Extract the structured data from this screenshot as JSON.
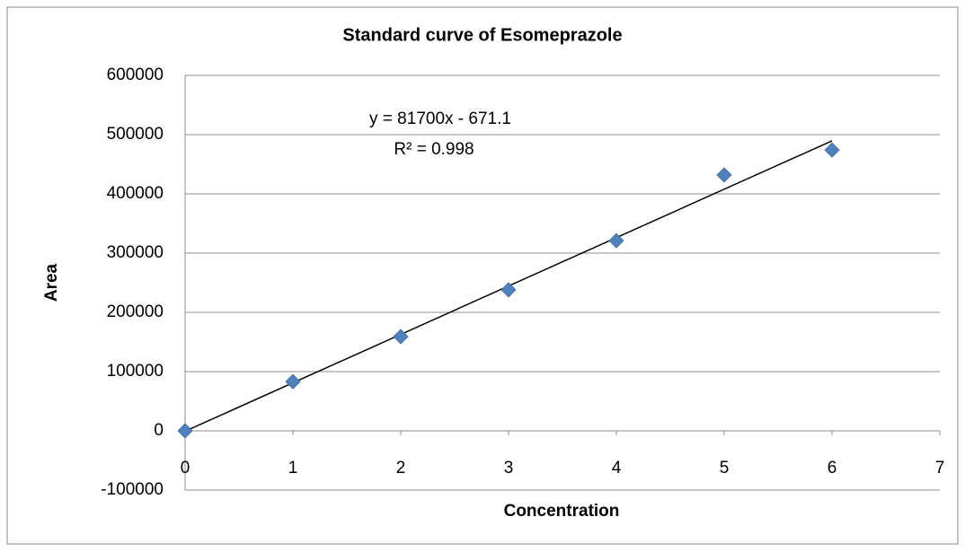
{
  "chart_data": {
    "type": "scatter",
    "title": "Standard curve of Esomeprazole",
    "x_label": "Concentration",
    "y_label": "Area",
    "x": [
      0,
      1,
      2,
      3,
      4,
      5,
      6
    ],
    "series": [
      {
        "name": "Area",
        "color": "#4f81bd",
        "values": [
          0,
          83000,
          159000,
          238000,
          321000,
          432000,
          474000
        ]
      }
    ],
    "trendline": {
      "slope": 81700,
      "intercept": -671.1,
      "equation": "y = 81700x - 671.1",
      "r_squared": "R² = 0.998",
      "color": "#000000"
    },
    "xlim": [
      0,
      7
    ],
    "xticks": [
      0,
      1,
      2,
      3,
      4,
      5,
      6,
      7
    ],
    "ylim": [
      -100000,
      600000
    ],
    "yticks": [
      -100000,
      0,
      100000,
      200000,
      300000,
      400000,
      500000,
      600000
    ],
    "grid": true,
    "legend": false
  }
}
